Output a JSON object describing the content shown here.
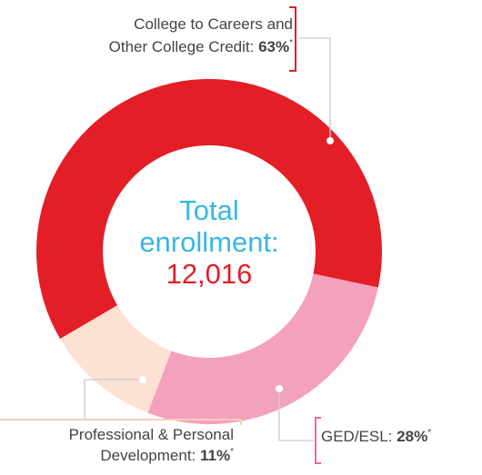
{
  "chart_data": {
    "type": "donut",
    "center_lines": [
      "Total",
      "enrollment:"
    ],
    "center_value": "12,016",
    "center_colors": [
      "#3bb6e3",
      "#e31e26"
    ],
    "labels": [
      [
        "College to Careers and",
        "Other College Credit:"
      ],
      [
        "GED/ESL:"
      ],
      [
        "Professional & Personal",
        "Development:"
      ]
    ],
    "values": [
      63,
      28,
      11
    ],
    "value_labels": [
      "63%",
      "28%",
      "11%"
    ],
    "footnote_marker": "*",
    "colors": [
      "#e31e26",
      "#f4a1be",
      "#fde1d3"
    ],
    "bracket_colors": [
      "#e31e26",
      "#ef6b8a",
      "#f9cdb6"
    ]
  }
}
